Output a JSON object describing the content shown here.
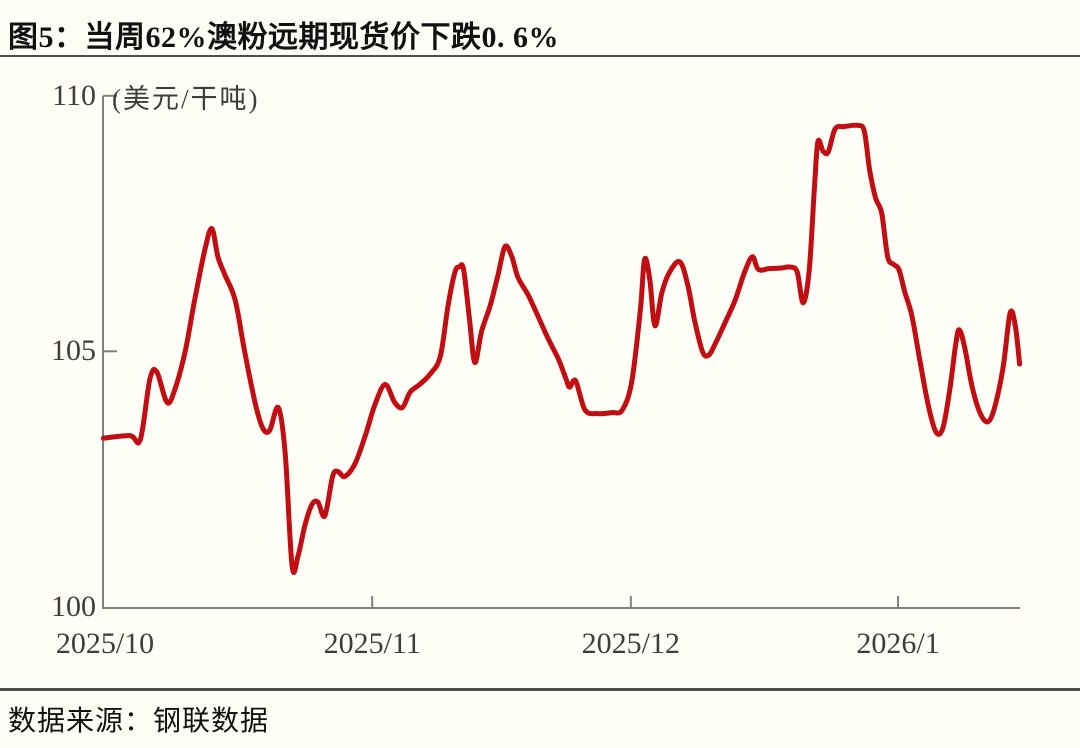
{
  "header": {
    "title": "图5：当周62%澳粉远期现货价下跌0. 6%"
  },
  "footer": {
    "source": "数据来源：钢联数据"
  },
  "chart_data": {
    "type": "line",
    "title": "当周62%澳粉远期现货价下跌0.6%",
    "ylabel": "(美元/干吨)",
    "ylim": [
      100,
      110
    ],
    "y_ticks": [
      110,
      105,
      100
    ],
    "y_tick_labels": [
      "110",
      "105",
      "100"
    ],
    "x_tick_labels": [
      "2025/10",
      "2025/11",
      "2025/12",
      "2026/1"
    ],
    "x_ticks_day": [
      0,
      31,
      61,
      92
    ],
    "grid": false,
    "legend_position": "none",
    "line_color": "#C20D12",
    "axis_color": "#7f7f7f",
    "series": [
      {
        "name": "62%澳粉远期现货价",
        "x_days_from_2025_10_01": [
          -0.2,
          2.9,
          4.1,
          5.2,
          6.0,
          7.2,
          8.1,
          9.3,
          10.4,
          11.6,
          12.4,
          13.1,
          13.9,
          15.1,
          16.2,
          17.4,
          18.3,
          19.1,
          20.1,
          20.9,
          21.7,
          22.4,
          23.2,
          24.0,
          24.7,
          25.5,
          26.4,
          27.0,
          27.8,
          29.0,
          30.2,
          31.3,
          32.5,
          33.6,
          34.5,
          35.4,
          36.5,
          37.7,
          38.9,
          39.8,
          40.6,
          41.1,
          41.6,
          42.3,
          42.9,
          43.7,
          44.7,
          45.6,
          46.4,
          47.2,
          47.9,
          49.1,
          50.2,
          51.4,
          52.6,
          53.5,
          53.9,
          54.6,
          55.7,
          57.2,
          58.8,
          60.0,
          61.1,
          62.1,
          62.6,
          63.2,
          63.8,
          64.6,
          65.5,
          66.7,
          67.6,
          68.4,
          69.3,
          70.0,
          70.8,
          71.9,
          73.1,
          74.2,
          75.1,
          75.8,
          77.1,
          78.5,
          79.5,
          80.3,
          81.0,
          81.7,
          82.3,
          82.7,
          83.3,
          83.9,
          84.7,
          85.8,
          87.4,
          88.1,
          88.7,
          89.4,
          90.1,
          90.8,
          91.5,
          92.1,
          92.8,
          93.6,
          94.5,
          95.5,
          96.4,
          97.2,
          98.0,
          98.7,
          99.1,
          99.7,
          100.6,
          101.5,
          102.4,
          103.2,
          104.2,
          105.0,
          105.6,
          106.1
        ],
        "values": [
          103.3,
          103.35,
          103.27,
          104.45,
          104.6,
          104.0,
          104.25,
          105.0,
          106.0,
          107.0,
          107.4,
          106.85,
          106.5,
          106.0,
          105.0,
          104.0,
          103.5,
          103.45,
          103.9,
          103.0,
          100.8,
          101.0,
          101.6,
          102.0,
          102.05,
          101.78,
          102.55,
          102.65,
          102.55,
          102.8,
          103.35,
          103.95,
          104.35,
          104.0,
          103.9,
          104.2,
          104.35,
          104.55,
          104.9,
          105.9,
          106.55,
          106.65,
          106.6,
          105.6,
          104.78,
          105.4,
          105.9,
          106.5,
          107.05,
          106.85,
          106.45,
          106.1,
          105.7,
          105.25,
          104.85,
          104.45,
          104.3,
          104.42,
          103.85,
          103.78,
          103.8,
          103.85,
          104.4,
          105.8,
          106.8,
          106.4,
          105.5,
          106.15,
          106.55,
          106.75,
          106.3,
          105.6,
          105.0,
          104.92,
          105.15,
          105.55,
          106.0,
          106.55,
          106.85,
          106.6,
          106.62,
          106.63,
          106.65,
          106.55,
          105.95,
          106.6,
          108.2,
          109.1,
          108.92,
          108.9,
          109.35,
          109.4,
          109.42,
          109.3,
          108.55,
          108.0,
          107.7,
          106.85,
          106.7,
          106.6,
          106.15,
          105.7,
          104.85,
          103.95,
          103.42,
          103.5,
          104.25,
          105.15,
          105.42,
          105.1,
          104.3,
          103.8,
          103.62,
          103.9,
          104.7,
          105.75,
          105.5,
          104.75
        ]
      }
    ]
  }
}
